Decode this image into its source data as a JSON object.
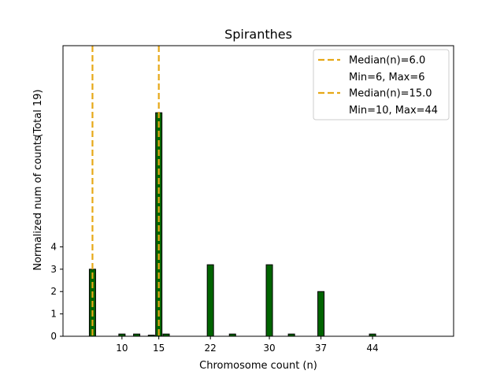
{
  "chart_data": {
    "type": "bar",
    "title": "Spiranthes",
    "xlabel": "Chromosome count (n)",
    "ylabel": "Normalized num of counts",
    "ylabel_note": "(Total 19)",
    "xlim": [
      2,
      55
    ],
    "ylim": [
      0,
      13
    ],
    "x_ticks": [
      10,
      15,
      22,
      30,
      37,
      44
    ],
    "y_ticks": [
      0,
      1,
      2,
      3,
      4
    ],
    "bar_color": "#006400",
    "bar_edge_color": "#000000",
    "median_color": "#e6a817",
    "bars": [
      {
        "x": 6,
        "value": 3.0
      },
      {
        "x": 10,
        "value": 0.1
      },
      {
        "x": 12,
        "value": 0.1
      },
      {
        "x": 14,
        "value": 0.05
      },
      {
        "x": 15,
        "value": 10.0
      },
      {
        "x": 16,
        "value": 0.1
      },
      {
        "x": 22,
        "value": 3.2
      },
      {
        "x": 25,
        "value": 0.1
      },
      {
        "x": 30,
        "value": 3.2
      },
      {
        "x": 33,
        "value": 0.1
      },
      {
        "x": 37,
        "value": 2.0
      },
      {
        "x": 44,
        "value": 0.1
      }
    ],
    "medians": [
      {
        "x": 6.0,
        "label": "Median(n)=6.0",
        "range_label": "Min=6, Max=6"
      },
      {
        "x": 15.0,
        "label": "Median(n)=15.0",
        "range_label": "Min=10, Max=44"
      }
    ],
    "legend_position": "top-right"
  }
}
